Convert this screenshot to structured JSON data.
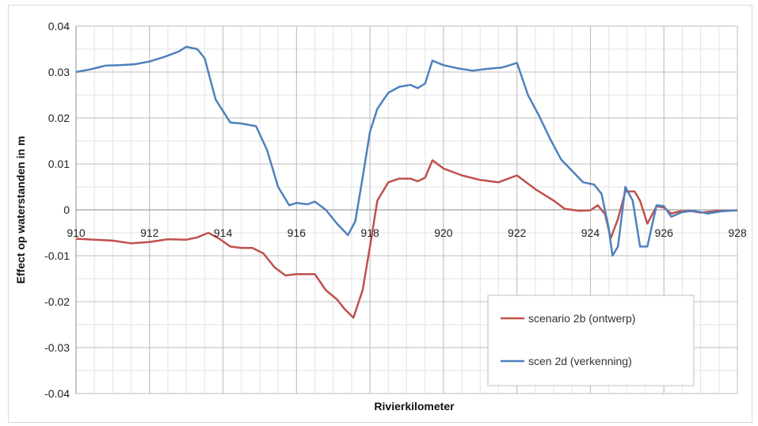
{
  "chart_data": {
    "type": "line",
    "title": "",
    "xlabel": "Rivierkilometer",
    "ylabel": "Effect op waterstanden in m",
    "xlim": [
      910,
      928
    ],
    "ylim": [
      -0.04,
      0.04
    ],
    "x_ticks": [
      "910",
      "912",
      "914",
      "916",
      "918",
      "920",
      "922",
      "924",
      "926",
      "928"
    ],
    "y_ticks": [
      "0.04",
      "0.03",
      "0.02",
      "0.01",
      "0",
      "-0.01",
      "-0.02",
      "-0.03",
      "-0.04"
    ],
    "grid": true,
    "legend_position": "bottom-right",
    "series": [
      {
        "name": "scenario 2b (ontwerp)",
        "color": "#c0504d",
        "points": [
          [
            910.0,
            -0.0063
          ],
          [
            910.5,
            -0.0065
          ],
          [
            911.0,
            -0.0067
          ],
          [
            911.5,
            -0.0073
          ],
          [
            912.0,
            -0.007
          ],
          [
            912.5,
            -0.0064
          ],
          [
            913.0,
            -0.0065
          ],
          [
            913.3,
            -0.006
          ],
          [
            913.6,
            -0.005
          ],
          [
            913.9,
            -0.0063
          ],
          [
            914.2,
            -0.008
          ],
          [
            914.5,
            -0.0083
          ],
          [
            914.8,
            -0.0083
          ],
          [
            915.1,
            -0.0095
          ],
          [
            915.4,
            -0.0125
          ],
          [
            915.7,
            -0.0143
          ],
          [
            916.0,
            -0.014
          ],
          [
            916.3,
            -0.014
          ],
          [
            916.5,
            -0.014
          ],
          [
            916.8,
            -0.0175
          ],
          [
            917.1,
            -0.0195
          ],
          [
            917.3,
            -0.0215
          ],
          [
            917.55,
            -0.0235
          ],
          [
            917.8,
            -0.0175
          ],
          [
            918.0,
            -0.008
          ],
          [
            918.2,
            0.002
          ],
          [
            918.5,
            0.006
          ],
          [
            918.8,
            0.0068
          ],
          [
            919.1,
            0.0068
          ],
          [
            919.3,
            0.0062
          ],
          [
            919.5,
            0.007
          ],
          [
            919.7,
            0.0108
          ],
          [
            920.0,
            0.009
          ],
          [
            920.5,
            0.0075
          ],
          [
            921.0,
            0.0065
          ],
          [
            921.5,
            0.006
          ],
          [
            922.0,
            0.0075
          ],
          [
            922.5,
            0.0045
          ],
          [
            923.0,
            0.002
          ],
          [
            923.3,
            0.0002
          ],
          [
            923.7,
            -0.0002
          ],
          [
            924.0,
            -0.0001
          ],
          [
            924.2,
            0.001
          ],
          [
            924.4,
            -0.001
          ],
          [
            924.55,
            -0.0062
          ],
          [
            924.75,
            -0.002
          ],
          [
            924.95,
            0.004
          ],
          [
            925.2,
            0.004
          ],
          [
            925.35,
            0.002
          ],
          [
            925.55,
            -0.003
          ],
          [
            925.8,
            0.0008
          ],
          [
            926.0,
            0.0005
          ],
          [
            926.2,
            -0.0008
          ],
          [
            926.4,
            -0.0004
          ],
          [
            926.7,
            -0.0002
          ],
          [
            927.0,
            -0.0006
          ],
          [
            927.5,
            -0.0002
          ],
          [
            928.0,
            -0.0001
          ]
        ]
      },
      {
        "name": "scen 2d (verkenning)",
        "color": "#4f81bd",
        "points": [
          [
            910.0,
            0.03
          ],
          [
            910.4,
            0.0306
          ],
          [
            910.8,
            0.0314
          ],
          [
            911.2,
            0.0315
          ],
          [
            911.6,
            0.0317
          ],
          [
            912.0,
            0.0323
          ],
          [
            912.4,
            0.0333
          ],
          [
            912.8,
            0.0345
          ],
          [
            913.0,
            0.0355
          ],
          [
            913.3,
            0.035
          ],
          [
            913.5,
            0.033
          ],
          [
            913.8,
            0.024
          ],
          [
            914.2,
            0.019
          ],
          [
            914.5,
            0.0188
          ],
          [
            914.9,
            0.0182
          ],
          [
            915.2,
            0.013
          ],
          [
            915.5,
            0.005
          ],
          [
            915.8,
            0.001
          ],
          [
            916.0,
            0.0015
          ],
          [
            916.3,
            0.0012
          ],
          [
            916.5,
            0.0018
          ],
          [
            916.8,
            0.0
          ],
          [
            917.1,
            -0.003
          ],
          [
            917.4,
            -0.0055
          ],
          [
            917.6,
            -0.0025
          ],
          [
            917.8,
            0.007
          ],
          [
            918.0,
            0.017
          ],
          [
            918.2,
            0.022
          ],
          [
            918.5,
            0.0255
          ],
          [
            918.8,
            0.0268
          ],
          [
            919.1,
            0.0272
          ],
          [
            919.3,
            0.0265
          ],
          [
            919.5,
            0.0275
          ],
          [
            919.7,
            0.0325
          ],
          [
            920.0,
            0.0315
          ],
          [
            920.4,
            0.0308
          ],
          [
            920.8,
            0.0303
          ],
          [
            921.2,
            0.0307
          ],
          [
            921.6,
            0.031
          ],
          [
            922.0,
            0.032
          ],
          [
            922.3,
            0.025
          ],
          [
            922.6,
            0.0205
          ],
          [
            922.9,
            0.0155
          ],
          [
            923.2,
            0.011
          ],
          [
            923.5,
            0.0085
          ],
          [
            923.8,
            0.006
          ],
          [
            924.1,
            0.0055
          ],
          [
            924.3,
            0.0035
          ],
          [
            924.5,
            -0.004
          ],
          [
            924.6,
            -0.01
          ],
          [
            924.75,
            -0.008
          ],
          [
            924.95,
            0.005
          ],
          [
            925.15,
            0.002
          ],
          [
            925.35,
            -0.008
          ],
          [
            925.55,
            -0.008
          ],
          [
            925.8,
            0.001
          ],
          [
            926.0,
            0.0008
          ],
          [
            926.2,
            -0.0015
          ],
          [
            926.5,
            -0.0005
          ],
          [
            926.8,
            -0.0002
          ],
          [
            927.2,
            -0.0008
          ],
          [
            927.6,
            -0.0003
          ],
          [
            928.0,
            -0.0001
          ]
        ]
      }
    ]
  }
}
